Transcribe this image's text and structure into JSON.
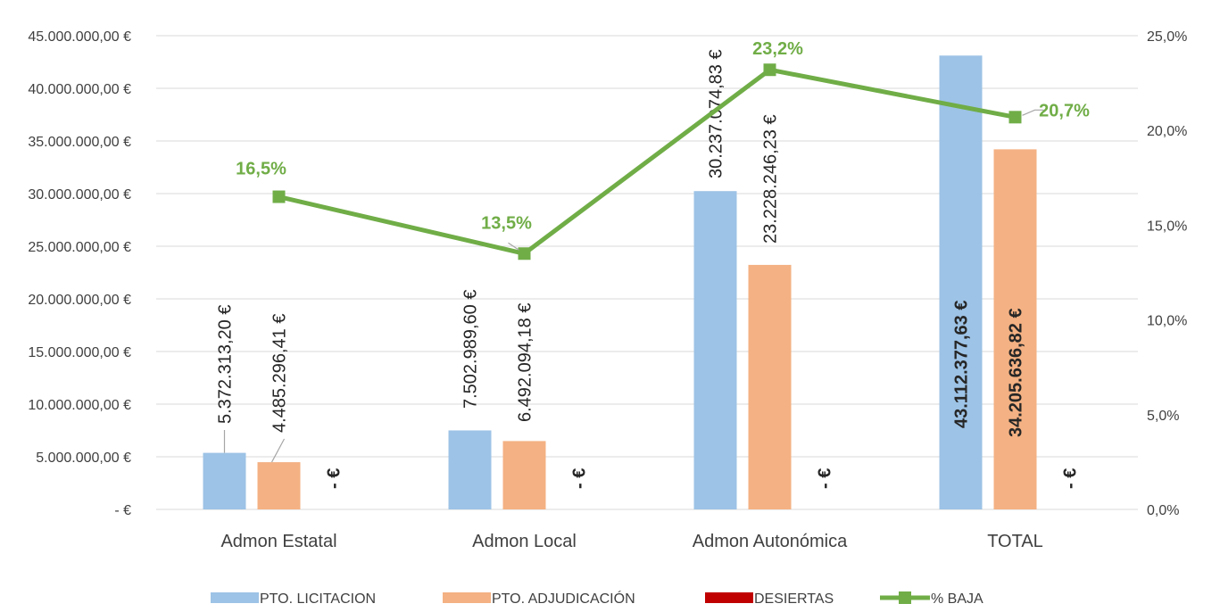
{
  "chart_data": {
    "type": "bar",
    "categories": [
      "Admon Estatal",
      "Admon Local",
      "Admon Autonómica",
      "TOTAL"
    ],
    "series": [
      {
        "name": "PTO. LICITACION",
        "color": "#9dc3e6",
        "values": [
          5372313.2,
          7502989.6,
          30237074.83,
          43112377.63
        ],
        "labels": [
          "5.372.313,20 €",
          "7.502.989,60 €",
          "30.237.074,83 €",
          "43.112.377,63 €"
        ]
      },
      {
        "name": "PTO. ADJUDICACIÓN",
        "color": "#f4b183",
        "values": [
          4485296.41,
          6492094.18,
          23228246.23,
          34205636.82
        ],
        "labels": [
          "4.485.296,41 €",
          "6.492.094,18 €",
          "23.228.246,23 €",
          "34.205.636,82 €"
        ]
      },
      {
        "name": "DESIERTAS",
        "color": "#c00000",
        "values": [
          0,
          0,
          0,
          0
        ],
        "labels": [
          "- €",
          "- €",
          "- €",
          "- €"
        ]
      }
    ],
    "line_series": {
      "name": "% BAJA",
      "color": "#70ad47",
      "axis": "secondary",
      "values": [
        16.5,
        13.5,
        23.2,
        20.7
      ],
      "labels": [
        "16,5%",
        "13,5%",
        "23,2%",
        "20,7%"
      ]
    },
    "y_axis": {
      "min": 0,
      "max": 45000000,
      "step": 5000000,
      "tick_labels": [
        "-  €",
        "5.000.000,00 €",
        "10.000.000,00 €",
        "15.000.000,00 €",
        "20.000.000,00 €",
        "25.000.000,00 €",
        "30.000.000,00 €",
        "35.000.000,00 €",
        "40.000.000,00 €",
        "45.000.000,00 €"
      ]
    },
    "y2_axis": {
      "min": 0,
      "max": 25,
      "step": 5,
      "tick_labels": [
        "0,0%",
        "5,0%",
        "10,0%",
        "15,0%",
        "20,0%",
        "25,0%"
      ]
    },
    "grid": true,
    "legend": "bottom",
    "gridline_color": "#d9d9d9"
  }
}
